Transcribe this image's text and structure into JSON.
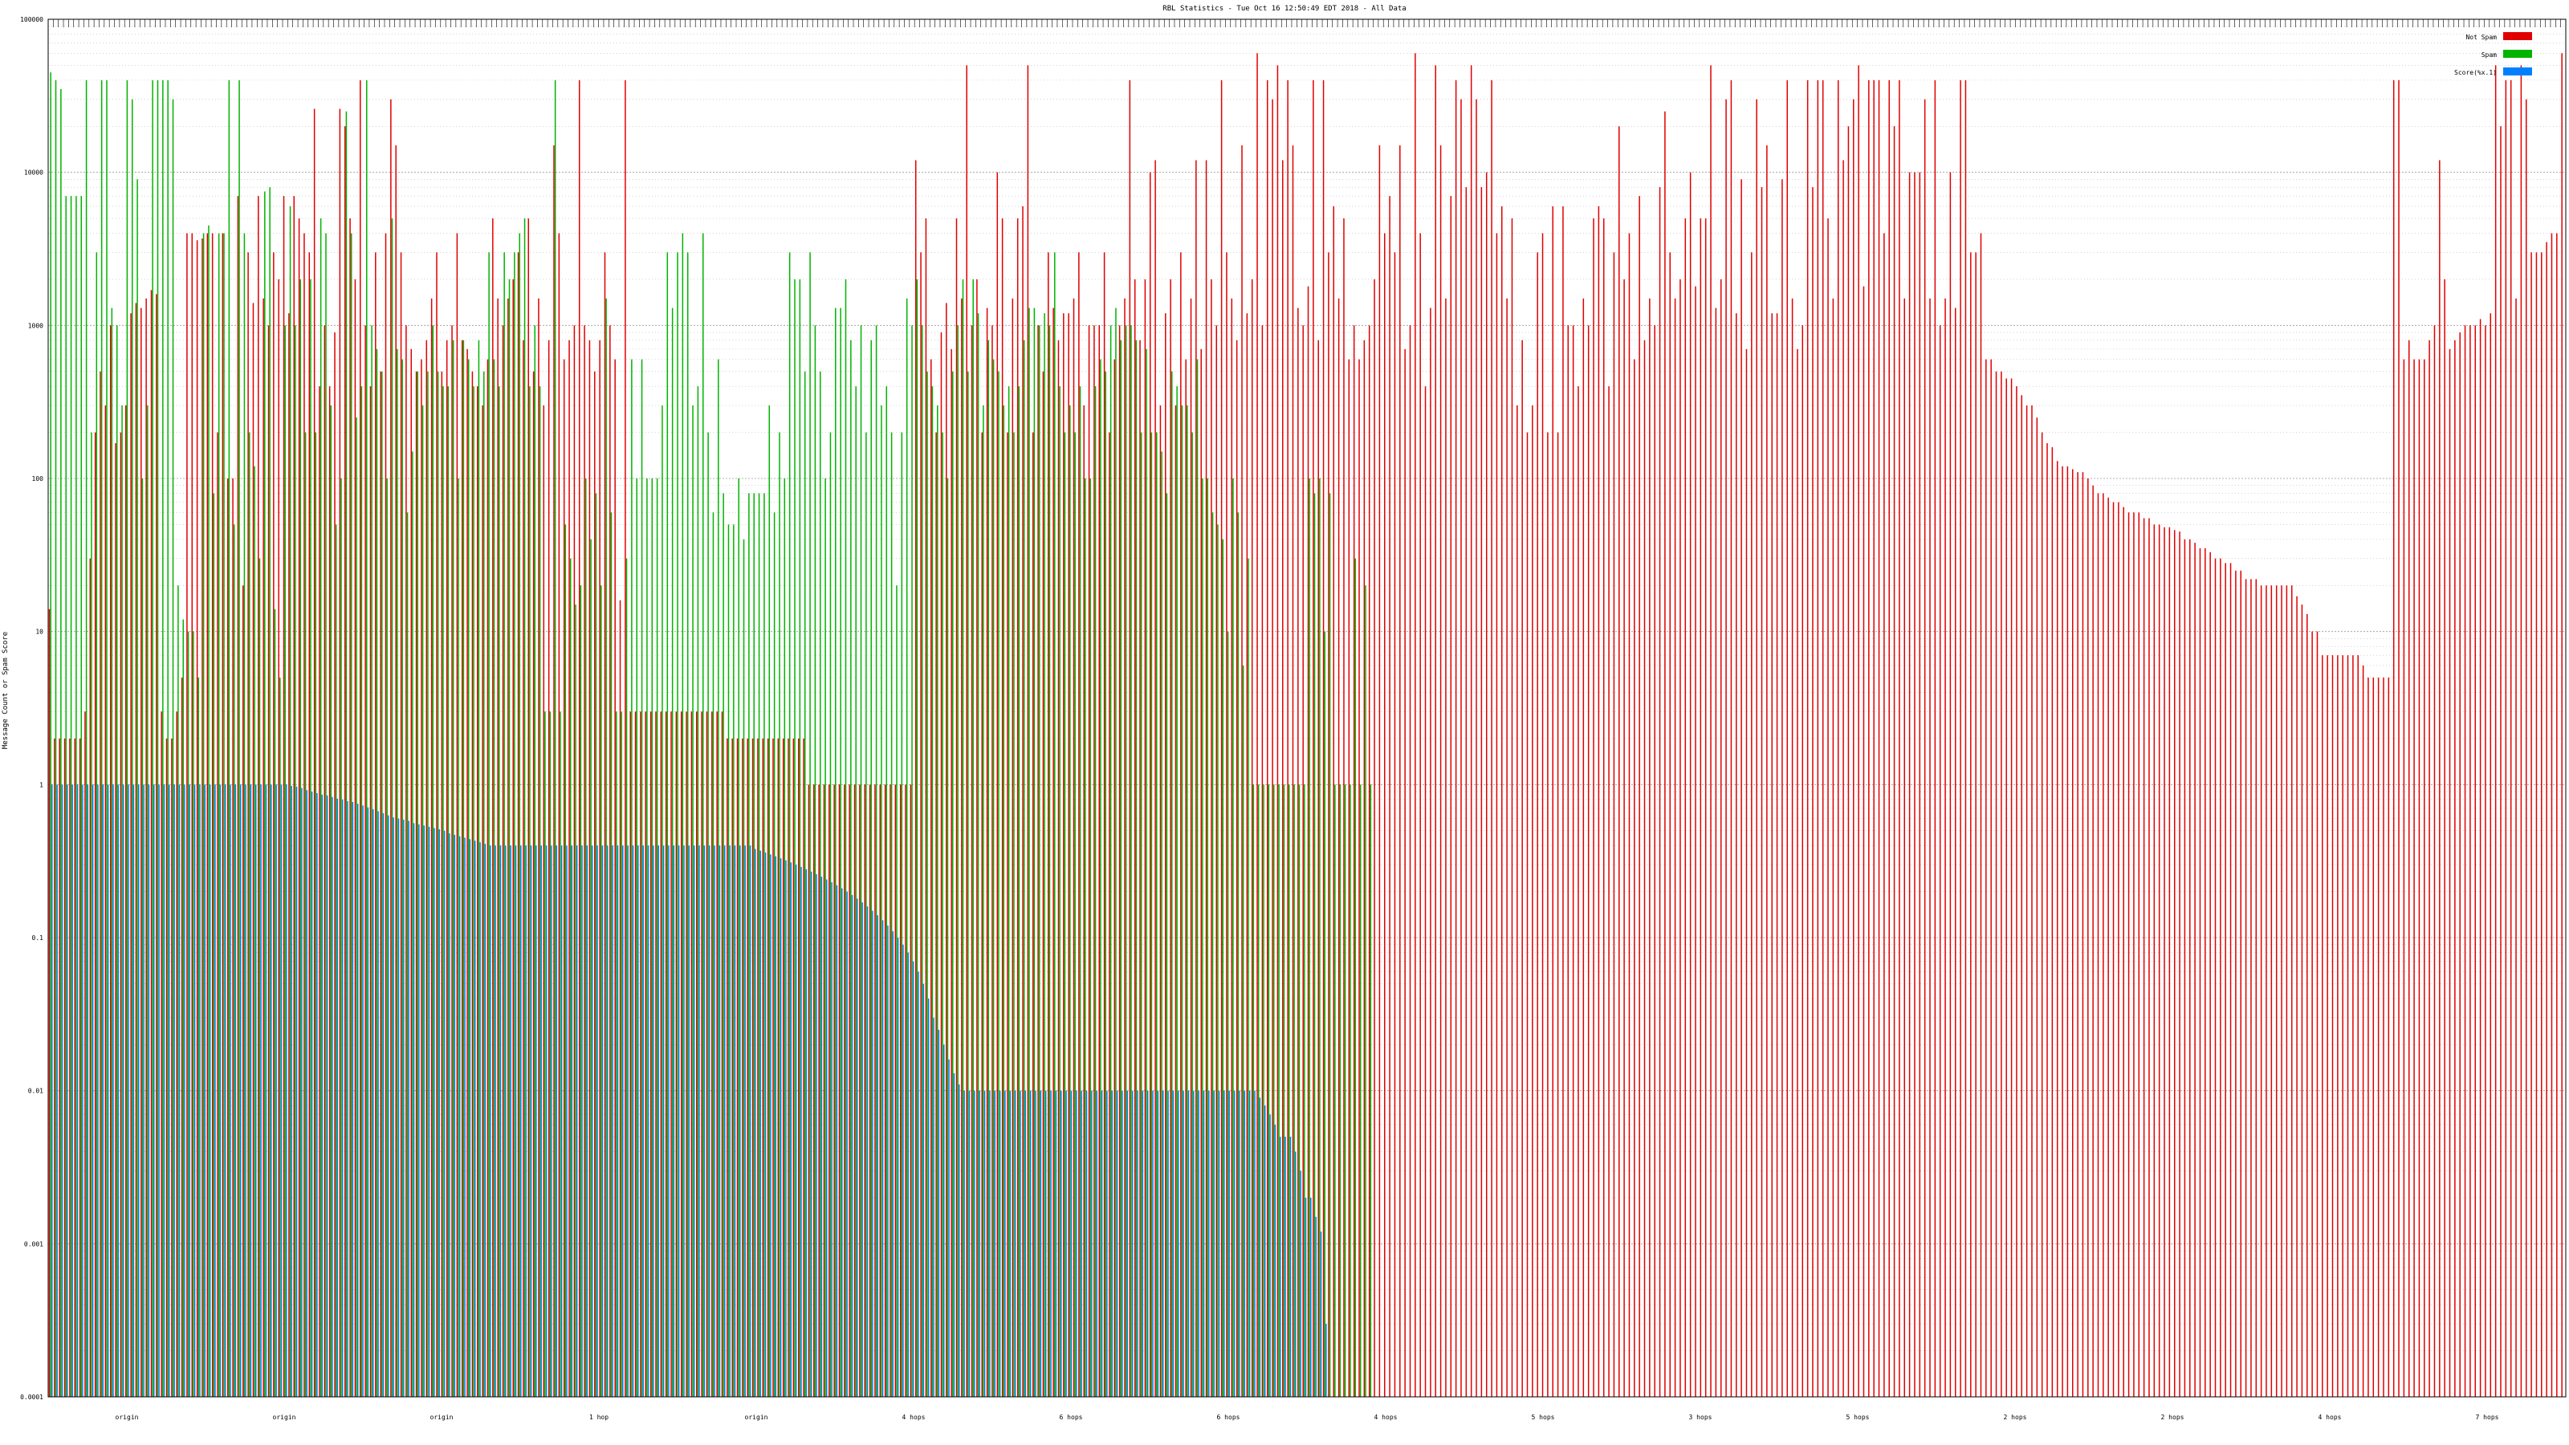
{
  "chart_data": {
    "type": "bar",
    "title": "RBL Statistics - Tue Oct 16 12:50:49 EDT 2018 - All Data",
    "ylabel": "Message Count or Spam Score",
    "xlabel": "",
    "yscale": "log",
    "ylim": [
      0.0001,
      100000
    ],
    "grid": true,
    "legend_position": "top-right",
    "y_ticks": [
      {
        "value": 100000,
        "label": "100000"
      },
      {
        "value": 10000,
        "label": "10000"
      },
      {
        "value": 1000,
        "label": "1000"
      },
      {
        "value": 100,
        "label": "100"
      },
      {
        "value": 10,
        "label": "10"
      },
      {
        "value": 1,
        "label": "1"
      },
      {
        "value": 0.1,
        "label": "0.1"
      },
      {
        "value": 0.01,
        "label": "0.01"
      },
      {
        "value": 0.001,
        "label": "0.001"
      },
      {
        "value": 0.0001,
        "label": "0.0001"
      }
    ],
    "categories_shown_labels": [
      "origin",
      "origin",
      "origin",
      "1 hop",
      "origin",
      "4 hops",
      "6 hops",
      "6 hops",
      "4 hops",
      "5 hops",
      "3 hops",
      "5 hops",
      "2 hops",
      "2 hops",
      "4 hops",
      "7 hops"
    ],
    "series": [
      {
        "name": "Not Spam",
        "color": "#e00000",
        "values": [
          14,
          2,
          2,
          2,
          2,
          2,
          2,
          3,
          30,
          200,
          500,
          300,
          1000,
          170,
          200,
          300,
          1200,
          1400,
          1300,
          1500,
          1700,
          1600,
          3,
          2,
          2,
          3,
          5,
          4000,
          4000,
          3600,
          3700,
          4000,
          4000,
          200,
          4000,
          100,
          100,
          7000,
          20,
          3000,
          1400,
          7000,
          1500,
          1000,
          3000,
          2000,
          7000,
          1200,
          7000,
          5000,
          4000,
          3000,
          26000,
          400,
          1000,
          400,
          900,
          26000,
          20000,
          5000,
          2000,
          40000,
          1000,
          400,
          3000,
          500,
          4000,
          30000,
          15000,
          3000,
          1000,
          700,
          500,
          600,
          800,
          1500,
          3000,
          500,
          800,
          1000,
          4000,
          800,
          700,
          500,
          400,
          300,
          600,
          5000,
          1500,
          1000,
          1500,
          2000,
          3000,
          800,
          5000,
          500,
          1500,
          300,
          800,
          15000,
          4000,
          600,
          800,
          1000,
          40000,
          1000,
          800,
          500,
          800,
          3000,
          1000,
          600,
          16,
          40000,
          3,
          3,
          3,
          3,
          3,
          3,
          3,
          3,
          3,
          3,
          3,
          3,
          3,
          3,
          3,
          3,
          3,
          3,
          3,
          2,
          2,
          2,
          2,
          2,
          2,
          2,
          2,
          2,
          2,
          2,
          2,
          2,
          2,
          2,
          2,
          1,
          1,
          1,
          1,
          1,
          1,
          1,
          1,
          1,
          1,
          1,
          1,
          1,
          1,
          1,
          1,
          1,
          1,
          1,
          1,
          1,
          12000,
          3000,
          5000,
          600,
          200,
          900,
          1400,
          700,
          5000,
          1500,
          50000,
          1000,
          2000,
          200,
          1300,
          1000,
          10000,
          5000,
          200,
          1500,
          5000,
          6000,
          50000,
          200,
          1000,
          500,
          3000,
          1300,
          800,
          1200,
          1200,
          1500,
          3000,
          300,
          1000,
          1000,
          1000,
          3000,
          200,
          600,
          1000,
          1500,
          40000,
          2000,
          800,
          2000,
          10000,
          12000,
          300,
          1200,
          2000,
          300,
          3000,
          600,
          1500,
          12000,
          700,
          12000,
          2000,
          1000,
          40000,
          3000,
          1500,
          800,
          15000,
          1200,
          2000,
          60000,
          1000,
          40000,
          30000,
          50000,
          12000,
          40000,
          15000,
          1300,
          1000,
          1800,
          40000,
          800,
          40000,
          3000,
          6000,
          1500,
          5000,
          600,
          1000,
          600,
          800,
          1000,
          2000,
          15000,
          4000,
          7000,
          3000,
          15000,
          700,
          1000,
          60000,
          4000,
          400,
          1300,
          50000,
          15000,
          1500,
          7000,
          40000,
          30000,
          8000,
          50000,
          30000,
          8000,
          10000,
          40000,
          4000,
          6000,
          1500,
          5000,
          300,
          800,
          200,
          300,
          3000,
          4000,
          200,
          6000,
          200,
          6000,
          1000,
          1000,
          400,
          1500,
          1000,
          5000,
          6000,
          5000,
          400,
          3000,
          20000,
          2000,
          4000,
          600,
          7000,
          800,
          1500,
          1000,
          8000,
          25000,
          3000,
          1500,
          2000,
          5000,
          10000,
          1800,
          5000,
          5000,
          50000,
          1300,
          2000,
          30000,
          40000,
          1200,
          9000,
          700,
          3000,
          30000,
          8000,
          15000,
          1200,
          1200,
          9000,
          40000,
          1500,
          700,
          1000,
          40000,
          8000,
          40000,
          40000,
          5000,
          1500,
          40000,
          12000,
          20000,
          30000,
          50000,
          1800,
          40000,
          40000,
          40000,
          4000,
          40000,
          20000,
          40000,
          1500,
          10000,
          10000,
          10000,
          30000,
          1500,
          40000,
          1000,
          1500,
          10000,
          1300,
          40000,
          40000,
          3000,
          3000,
          4000,
          600,
          600,
          500,
          500,
          450,
          450,
          400,
          350,
          300,
          300,
          250,
          200,
          170,
          160,
          130,
          120,
          120,
          115,
          110,
          110,
          100,
          90,
          80,
          80,
          75,
          70,
          70,
          65,
          60,
          60,
          60,
          55,
          55,
          50,
          50,
          48,
          48,
          46,
          45,
          40,
          40,
          38,
          35,
          35,
          33,
          30,
          30,
          28,
          28,
          25,
          25,
          22,
          22,
          22,
          20,
          20,
          20,
          20,
          20,
          20,
          20,
          17,
          15,
          13,
          10,
          10,
          7,
          7,
          7,
          7,
          7,
          7,
          7,
          7,
          6,
          5,
          5,
          5,
          5,
          5,
          40000,
          40000,
          600,
          800,
          600,
          600,
          600,
          800,
          1000,
          12000,
          2000,
          700,
          800,
          900,
          1000,
          1000,
          1000,
          1100,
          1000,
          1200,
          50000,
          20000,
          40000,
          40000,
          1500,
          50000,
          30000,
          3000,
          3000,
          3000,
          3500,
          4000,
          4000,
          60000
        ]
      },
      {
        "name": "Spam",
        "color": "#00b400",
        "values": [
          45000,
          40000,
          35000,
          7000,
          7000,
          7000,
          7000,
          40000,
          200,
          3000,
          40000,
          40000,
          1300,
          1000,
          300,
          40000,
          30000,
          9000,
          100,
          300,
          40000,
          40000,
          40000,
          40000,
          30000,
          20,
          12,
          10,
          10,
          5,
          4000,
          4500,
          80,
          4000,
          4000,
          40000,
          50,
          40000,
          4000,
          200,
          120,
          30,
          7500,
          8000,
          14,
          5,
          1000,
          6000,
          1000,
          2000,
          200,
          2000,
          200,
          5000,
          4000,
          300,
          50,
          100,
          25000,
          4000,
          250,
          400,
          40000,
          1000,
          700,
          500,
          100,
          5000,
          700,
          600,
          60,
          150,
          500,
          300,
          500,
          1000,
          500,
          400,
          400,
          800,
          100,
          800,
          600,
          400,
          800,
          500,
          3000,
          600,
          400,
          3000,
          2000,
          3000,
          4000,
          5000,
          400,
          1000,
          400,
          3,
          3,
          40000,
          3,
          50,
          30,
          15,
          20,
          100,
          40,
          80,
          20,
          1500,
          60,
          3,
          3,
          30,
          600,
          100,
          600,
          100,
          100,
          100,
          300,
          3000,
          1300,
          3000,
          4000,
          3000,
          300,
          400,
          4000,
          200,
          60,
          600,
          80,
          50,
          50,
          100,
          40,
          80,
          80,
          80,
          80,
          300,
          60,
          200,
          100,
          3000,
          2000,
          2000,
          500,
          3000,
          1000,
          500,
          100,
          200,
          1300,
          1300,
          2000,
          800,
          400,
          1000,
          200,
          800,
          1000,
          300,
          400,
          200,
          20,
          200,
          1500,
          1000,
          2000,
          1000,
          500,
          400,
          300,
          200,
          100,
          500,
          1000,
          2000,
          500,
          2000,
          1200,
          300,
          800,
          600,
          500,
          300,
          400,
          200,
          400,
          800,
          1300,
          1300,
          1000,
          1200,
          1000,
          3000,
          400,
          200,
          300,
          200,
          400,
          100,
          100,
          400,
          600,
          500,
          1000,
          1300,
          800,
          1000,
          1000,
          800,
          200,
          700,
          200,
          200,
          150,
          80,
          500,
          400,
          300,
          300,
          200,
          600,
          100,
          100,
          60,
          50,
          40,
          10,
          100,
          60,
          6,
          30,
          1,
          1,
          1,
          1,
          1,
          1,
          1,
          1,
          1,
          1,
          1,
          100,
          80,
          100,
          10,
          80,
          1,
          1,
          1,
          1,
          30,
          1,
          20,
          1
        ]
      },
      {
        "name": "Score(%x.1)",
        "color": "#0080ff",
        "values": [
          1,
          1,
          1,
          1,
          1,
          1,
          1,
          1,
          1,
          1,
          1,
          1,
          1,
          1,
          1,
          1,
          1,
          1,
          1,
          1,
          1,
          1,
          1,
          1,
          1,
          1,
          1,
          1,
          1,
          1,
          1,
          1,
          1,
          1,
          1,
          1,
          1,
          1,
          1,
          1,
          1,
          1,
          1,
          1,
          1,
          1,
          1,
          0.98,
          0.97,
          0.95,
          0.92,
          0.9,
          0.88,
          0.86,
          0.85,
          0.83,
          0.81,
          0.8,
          0.78,
          0.77,
          0.75,
          0.73,
          0.71,
          0.69,
          0.67,
          0.65,
          0.63,
          0.61,
          0.6,
          0.59,
          0.58,
          0.56,
          0.55,
          0.54,
          0.53,
          0.52,
          0.51,
          0.5,
          0.48,
          0.47,
          0.46,
          0.45,
          0.44,
          0.43,
          0.42,
          0.41,
          0.4,
          0.4,
          0.4,
          0.4,
          0.4,
          0.4,
          0.4,
          0.4,
          0.4,
          0.4,
          0.4,
          0.4,
          0.4,
          0.4,
          0.4,
          0.4,
          0.4,
          0.4,
          0.4,
          0.4,
          0.4,
          0.4,
          0.4,
          0.4,
          0.4,
          0.4,
          0.4,
          0.4,
          0.4,
          0.4,
          0.4,
          0.4,
          0.4,
          0.4,
          0.4,
          0.4,
          0.4,
          0.4,
          0.4,
          0.4,
          0.4,
          0.4,
          0.4,
          0.4,
          0.4,
          0.4,
          0.4,
          0.4,
          0.4,
          0.4,
          0.4,
          0.4,
          0.38,
          0.37,
          0.36,
          0.35,
          0.34,
          0.33,
          0.32,
          0.31,
          0.3,
          0.29,
          0.28,
          0.27,
          0.26,
          0.25,
          0.24,
          0.23,
          0.22,
          0.21,
          0.2,
          0.19,
          0.18,
          0.17,
          0.16,
          0.15,
          0.14,
          0.13,
          0.12,
          0.11,
          0.1,
          0.09,
          0.08,
          0.07,
          0.06,
          0.05,
          0.04,
          0.03,
          0.025,
          0.02,
          0.016,
          0.013,
          0.011,
          0.01,
          0.01,
          0.01,
          0.01,
          0.01,
          0.01,
          0.01,
          0.01,
          0.01,
          0.01,
          0.01,
          0.01,
          0.01,
          0.01,
          0.01,
          0.01,
          0.01,
          0.01,
          0.01,
          0.01,
          0.01,
          0.01,
          0.01,
          0.01,
          0.01,
          0.01,
          0.01,
          0.01,
          0.01,
          0.01,
          0.01,
          0.01,
          0.01,
          0.01,
          0.01,
          0.01,
          0.01,
          0.01,
          0.01,
          0.01,
          0.01,
          0.01,
          0.01,
          0.01,
          0.01,
          0.01,
          0.01,
          0.01,
          0.01,
          0.01,
          0.01,
          0.01,
          0.01,
          0.01,
          0.01,
          0.01,
          0.01,
          0.01,
          0.009,
          0.008,
          0.007,
          0.006,
          0.005,
          0.005,
          0.005,
          0.004,
          0.003,
          0.002,
          0.002,
          0.0015,
          0.0012,
          0.0003
        ]
      }
    ]
  }
}
